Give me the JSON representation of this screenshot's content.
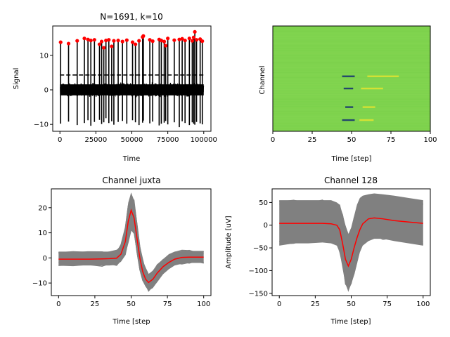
{
  "chart_data": [
    {
      "type": "line",
      "panel": "top-left",
      "title": "N=1691, k=10",
      "xlabel": "Time",
      "ylabel": "Signal",
      "xlim": [
        -5000,
        105000
      ],
      "ylim": [
        -12,
        18.5
      ],
      "xticks": [
        0,
        25000,
        50000,
        75000,
        100000
      ],
      "xtick_labels": [
        "0",
        "25000",
        "50000",
        "75000",
        "100000"
      ],
      "yticks": [
        -10,
        0,
        10
      ],
      "ytick_labels": [
        "−10",
        "0",
        "10"
      ],
      "threshold": 4.3,
      "noise_band": [
        -1.6,
        1.6
      ],
      "spikes": [
        {
          "t": 500,
          "peak": 13.8,
          "trough": -9.8
        },
        {
          "t": 6000,
          "peak": 13.4,
          "trough": -9.2
        },
        {
          "t": 12000,
          "peak": 14.2,
          "trough": -10.2
        },
        {
          "t": 17000,
          "peak": 14.9,
          "trough": -9.6
        },
        {
          "t": 19500,
          "peak": 14.6,
          "trough": -8.8
        },
        {
          "t": 21500,
          "peak": 14.3,
          "trough": -10.4
        },
        {
          "t": 24000,
          "peak": 14.5,
          "trough": -9.3
        },
        {
          "t": 27500,
          "peak": 13.2,
          "trough": -8.7
        },
        {
          "t": 29000,
          "peak": 14.0,
          "trough": -9.9
        },
        {
          "t": 30500,
          "peak": 12.2,
          "trough": -9.4
        },
        {
          "t": 32000,
          "peak": 14.3,
          "trough": -8.2
        },
        {
          "t": 34000,
          "peak": 14.5,
          "trough": -9.6
        },
        {
          "t": 36000,
          "peak": 12.6,
          "trough": -9.1
        },
        {
          "t": 37500,
          "peak": 14.2,
          "trough": -10.1
        },
        {
          "t": 40500,
          "peak": 14.3,
          "trough": -9.3
        },
        {
          "t": 43500,
          "peak": 14.0,
          "trough": -9.0
        },
        {
          "t": 46500,
          "peak": 14.4,
          "trough": -9.8
        },
        {
          "t": 50500,
          "peak": 13.8,
          "trough": -8.8
        },
        {
          "t": 52500,
          "peak": 13.2,
          "trough": -9.4
        },
        {
          "t": 55000,
          "peak": 14.2,
          "trough": -10.2
        },
        {
          "t": 57500,
          "peak": 15.3,
          "trough": -9.5
        },
        {
          "t": 58000,
          "peak": 15.6,
          "trough": -8.9
        },
        {
          "t": 62500,
          "peak": 14.5,
          "trough": -9.7
        },
        {
          "t": 64500,
          "peak": 14.1,
          "trough": -9.2
        },
        {
          "t": 69000,
          "peak": 14.6,
          "trough": -10.3
        },
        {
          "t": 70500,
          "peak": 14.3,
          "trough": -9.8
        },
        {
          "t": 72500,
          "peak": 14.0,
          "trough": -9.5
        },
        {
          "t": 73500,
          "peak": 12.8,
          "trough": -9.0
        },
        {
          "t": 75000,
          "peak": 14.9,
          "trough": -10.0
        },
        {
          "t": 79500,
          "peak": 14.4,
          "trough": -9.4
        },
        {
          "t": 83000,
          "peak": 14.6,
          "trough": -10.8
        },
        {
          "t": 85000,
          "peak": 14.8,
          "trough": -9.1
        },
        {
          "t": 87000,
          "peak": 14.3,
          "trough": -9.6
        },
        {
          "t": 90000,
          "peak": 14.9,
          "trough": -10.2
        },
        {
          "t": 92000,
          "peak": 14.2,
          "trough": -9.4
        },
        {
          "t": 93000,
          "peak": 15.2,
          "trough": -9.8
        },
        {
          "t": 93800,
          "peak": 16.8,
          "trough": -10.1
        },
        {
          "t": 95000,
          "peak": 14.5,
          "trough": -9.3
        },
        {
          "t": 97500,
          "peak": 14.7,
          "trough": -9.7
        },
        {
          "t": 99000,
          "peak": 14.1,
          "trough": -10.0
        }
      ],
      "colors": {
        "signal": "#000000",
        "spike_marker": "#ff0000",
        "threshold": "#000000"
      }
    },
    {
      "type": "heatmap",
      "panel": "top-right",
      "title": "",
      "xlabel": "Time [step]",
      "ylabel": "Channel",
      "xlim": [
        0,
        100
      ],
      "xticks": [
        0,
        25,
        50,
        75,
        100
      ],
      "xtick_labels": [
        "0",
        "25",
        "50",
        "75",
        "100"
      ],
      "yticks": [],
      "rows": 130,
      "background_color": "#7fd34e",
      "features": [
        {
          "row": 62,
          "t_start": 44,
          "t_end": 52,
          "value": "low"
        },
        {
          "row": 62,
          "t_start": 60,
          "t_end": 80,
          "value": "high"
        },
        {
          "row": 77,
          "t_start": 45,
          "t_end": 51,
          "value": "low"
        },
        {
          "row": 77,
          "t_start": 56,
          "t_end": 70,
          "value": "high"
        },
        {
          "row": 100,
          "t_start": 46,
          "t_end": 51,
          "value": "low"
        },
        {
          "row": 100,
          "t_start": 57,
          "t_end": 65,
          "value": "high"
        },
        {
          "row": 116,
          "t_start": 44,
          "t_end": 52,
          "value": "low"
        },
        {
          "row": 116,
          "t_start": 55,
          "t_end": 64,
          "value": "high"
        }
      ]
    },
    {
      "type": "line",
      "panel": "bottom-left",
      "title": "Channel juxta",
      "xlabel": "Time [step",
      "ylabel": "",
      "xlim": [
        -5,
        105
      ],
      "ylim": [
        -15,
        27.5
      ],
      "xticks": [
        0,
        25,
        50,
        75,
        100
      ],
      "xtick_labels": [
        "0",
        "25",
        "50",
        "75",
        "100"
      ],
      "yticks": [
        -10,
        0,
        10,
        20
      ],
      "ytick_labels": [
        "−10",
        "0",
        "10",
        "20"
      ],
      "mean_x": [
        0,
        10,
        20,
        30,
        35,
        40,
        43,
        46,
        48,
        50,
        52,
        54,
        56,
        58,
        60,
        62,
        65,
        68,
        72,
        76,
        80,
        85,
        90,
        95,
        100
      ],
      "mean_y": [
        -0.5,
        -0.5,
        -0.5,
        -0.4,
        -0.3,
        -0.1,
        1.5,
        6.5,
        14.5,
        19.0,
        16.0,
        8.0,
        0.0,
        -5.5,
        -8.5,
        -9.8,
        -8.5,
        -6.0,
        -3.5,
        -1.8,
        -0.5,
        0.2,
        0.3,
        0.3,
        0.3
      ],
      "band_low": [
        -3,
        -3,
        -3,
        -3,
        -3,
        -2.8,
        -1.5,
        1.0,
        6.0,
        11.0,
        9.5,
        2.5,
        -4.5,
        -9.0,
        -11.5,
        -13.0,
        -12.0,
        -9.5,
        -6.5,
        -4.5,
        -3.0,
        -2.3,
        -2.0,
        -2.0,
        -2.0
      ],
      "band_high": [
        2.5,
        2.5,
        2.5,
        2.5,
        2.5,
        3.0,
        5.0,
        12.0,
        22.0,
        26.0,
        23.0,
        14.0,
        5.0,
        -1.0,
        -4.5,
        -6.5,
        -5.0,
        -2.5,
        -0.5,
        1.5,
        2.5,
        2.8,
        2.8,
        2.8,
        2.8
      ],
      "colors": {
        "mean": "#ff0000",
        "traces": "#808080"
      }
    },
    {
      "type": "line",
      "panel": "bottom-right",
      "title": "Channel 128",
      "xlabel": "Time [step]",
      "ylabel": "Amplitude [uV]",
      "xlim": [
        -5,
        105
      ],
      "ylim": [
        -155,
        80
      ],
      "xticks": [
        0,
        25,
        50,
        75,
        100
      ],
      "xtick_labels": [
        "0",
        "25",
        "50",
        "75",
        "100"
      ],
      "yticks": [
        -150,
        -100,
        -50,
        0,
        50
      ],
      "ytick_labels": [
        "−150",
        "−100",
        "−50",
        "0",
        "50"
      ],
      "mean_x": [
        0,
        10,
        20,
        30,
        36,
        40,
        42,
        44,
        46,
        48,
        50,
        52,
        54,
        56,
        58,
        62,
        66,
        72,
        80,
        90,
        100
      ],
      "mean_y": [
        4,
        4,
        4,
        4,
        3,
        0,
        -10,
        -40,
        -75,
        -90,
        -75,
        -50,
        -28,
        -10,
        3,
        14,
        16,
        14,
        10,
        7,
        4
      ],
      "band_low": [
        -45,
        -40,
        -40,
        -38,
        -40,
        -45,
        -60,
        -95,
        -130,
        -145,
        -130,
        -110,
        -85,
        -60,
        -45,
        -35,
        -30,
        -30,
        -35,
        -40,
        -45
      ],
      "band_high": [
        55,
        55,
        55,
        55,
        55,
        50,
        45,
        25,
        0,
        -20,
        -5,
        20,
        45,
        60,
        65,
        68,
        70,
        68,
        65,
        60,
        55
      ],
      "colors": {
        "mean": "#ff0000",
        "traces": "#808080"
      }
    }
  ]
}
